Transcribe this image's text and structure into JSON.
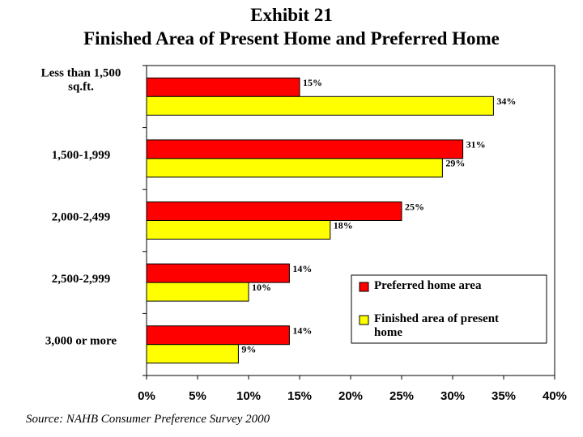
{
  "header": {
    "title": "Exhibit 21",
    "subtitle": "Finished Area of Present Home and Preferred Home"
  },
  "source": "Source:  NAHB Consumer Preference Survey 2000",
  "chart_data": {
    "type": "bar",
    "orientation": "horizontal",
    "categories": [
      "Less than 1,500 sq.ft.",
      "1,500-1,999",
      "2,000-2,499",
      "2,500-2,999",
      "3,000 or more"
    ],
    "category_lines": [
      [
        "Less than 1,500",
        "sq.ft."
      ],
      [
        "1,500-1,999"
      ],
      [
        "2,000-2,499"
      ],
      [
        "2,500-2,999"
      ],
      [
        "3,000 or more"
      ]
    ],
    "series": [
      {
        "name": "Preferred home area",
        "values": [
          15,
          31,
          25,
          14,
          14
        ],
        "labels": [
          "15%",
          "31%",
          "25%",
          "14%",
          "14%"
        ],
        "color": "#ff0000"
      },
      {
        "name": "Finished area of present home",
        "values": [
          34,
          29,
          18,
          10,
          9
        ],
        "labels": [
          "34%",
          "29%",
          "18%",
          "10%",
          "9%"
        ],
        "color": "#ffff00"
      }
    ],
    "legend_lines": [
      [
        "Preferred home area"
      ],
      [
        "Finished area of present",
        "home"
      ]
    ],
    "xlim": [
      0,
      40
    ],
    "x_ticks": [
      0,
      5,
      10,
      15,
      20,
      25,
      30,
      35,
      40
    ],
    "x_tick_labels": [
      "0%",
      "5%",
      "10%",
      "15%",
      "20%",
      "25%",
      "30%",
      "35%",
      "40%"
    ],
    "grid": false,
    "legend_position": "lower-right"
  }
}
